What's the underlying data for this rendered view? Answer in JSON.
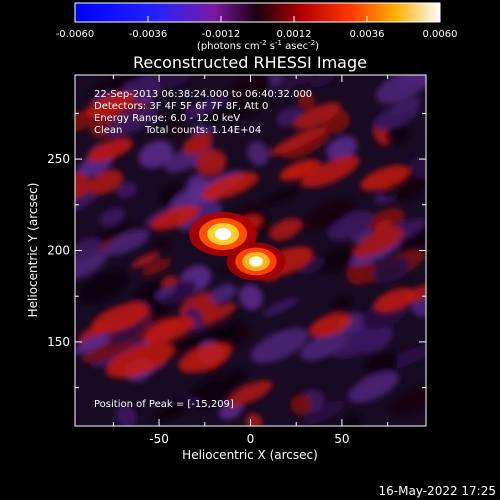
{
  "chart_data": {
    "type": "heatmap",
    "title": "Reconstructed RHESSI Image",
    "xlabel": "Heliocentric X (arcsec)",
    "ylabel": "Heliocentric Y (arcsec)",
    "xlim": [
      -96,
      96
    ],
    "ylim": [
      104,
      296
    ],
    "x_ticks": [
      -50,
      0,
      50
    ],
    "y_ticks": [
      150,
      200,
      250
    ],
    "colorbar": {
      "range": [
        -0.006,
        0.006
      ],
      "tick_labels": [
        "-0.0060",
        "-0.0036",
        "-0.0012",
        "0.0012",
        "0.0036",
        "0.0060"
      ],
      "unit_label_parts": [
        "(photons cm",
        "-2",
        " s",
        "-1",
        " asec",
        "-2",
        ")"
      ]
    },
    "peaks": [
      {
        "x": -15,
        "y": 209,
        "value": 0.006
      },
      {
        "x": 3,
        "y": 194,
        "value": 0.0052
      }
    ],
    "annotations": {
      "time_range": "22-Sep-2013 06:38:24.000 to 06:40:32.000",
      "detectors": "Detectors: 3F 4F 5F 6F 7F 8F, Att 0",
      "energy": "Energy Range: 6.0 - 12.0 keV",
      "clean_label": "Clean",
      "total_counts": "Total counts: 1.14E+04",
      "peak_position": "Position of Peak = [-15,209]"
    },
    "footer_date": "16-May-2022 17:25"
  }
}
